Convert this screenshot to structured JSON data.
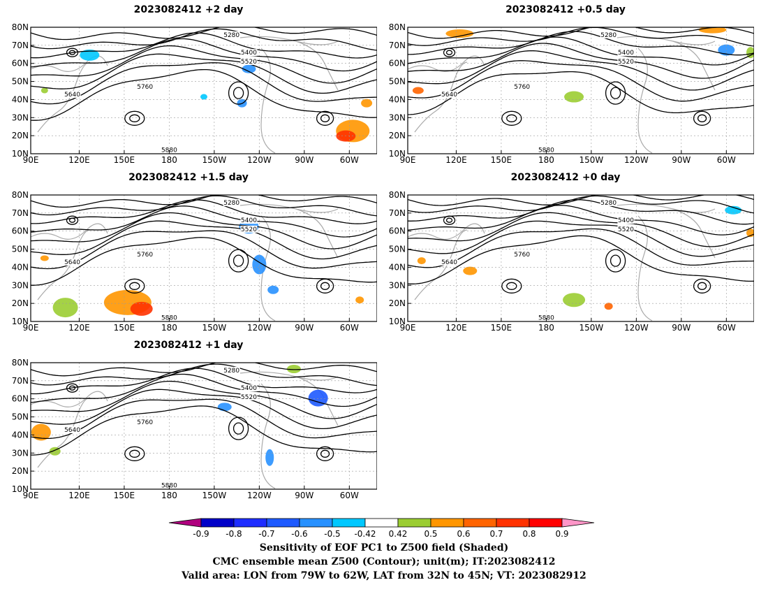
{
  "panels": [
    {
      "title": "2023082412 +2 day"
    },
    {
      "title": "2023082412 +0.5 day"
    },
    {
      "title": "2023082412 +1.5 day"
    },
    {
      "title": "2023082412 +0 day"
    },
    {
      "title": "2023082412 +1 day"
    }
  ],
  "axes": {
    "lat_labels": [
      "80N",
      "70N",
      "60N",
      "50N",
      "40N",
      "30N",
      "20N",
      "10N"
    ],
    "lon_labels": [
      "90E",
      "120E",
      "150E",
      "180",
      "150W",
      "120W",
      "90W",
      "60W"
    ]
  },
  "contour_labels": [
    "5280",
    "5400",
    "5520",
    "5640",
    "5760",
    "5880"
  ],
  "colorbar": {
    "tick_labels": [
      "-0.9",
      "-0.8",
      "-0.7",
      "-0.6",
      "-0.5",
      "-0.42",
      "0.42",
      "0.5",
      "0.6",
      "0.7",
      "0.8",
      "0.9"
    ],
    "colors": [
      "#b0007f",
      "#0000c8",
      "#1e2dff",
      "#1e5aff",
      "#2891ff",
      "#00c8ff",
      "#ffffff",
      "#9bcd32",
      "#ff9600",
      "#ff6400",
      "#ff3200",
      "#ff0000",
      "#ff96c8"
    ]
  },
  "captions": [
    "Sensitivity of EOF PC1 to Z500 field (Shaded)",
    "CMC ensemble mean Z500 (Contour); unit(m); IT:2023082412",
    "Valid area: LON from 79W to 62W, LAT from 32N to 45N; VT: 2023082912"
  ]
}
